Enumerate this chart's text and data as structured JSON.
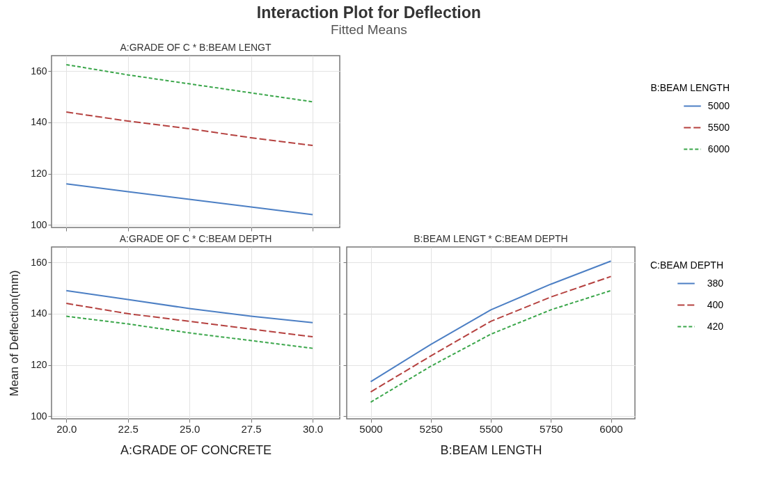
{
  "chart_data": [
    {
      "type": "line",
      "title": "Interaction Plot for Deflection",
      "subtitle": "Fitted Means",
      "annotations": [
        "A:GRADE OF C * B:BEAM LENGT"
      ],
      "x": [
        20,
        22.5,
        25,
        27.5,
        30
      ],
      "xlim": [
        19.4,
        31.1
      ],
      "xticks": [
        20,
        22.5,
        25,
        27.5,
        30
      ],
      "ylim": [
        99,
        166
      ],
      "yticks": [
        100,
        120,
        140,
        160
      ],
      "tick_labels": "y",
      "grid": true,
      "legend": "right",
      "legend_title": "B:BEAM LENGTH",
      "series": [
        {
          "name": "5000",
          "color": "#4c7fc4",
          "line_style": "solid",
          "values": [
            116,
            113,
            110,
            107,
            104
          ]
        },
        {
          "name": "5500",
          "color": "#b5413f",
          "line_style": "dashed",
          "values": [
            144,
            140.5,
            137.5,
            134,
            131
          ]
        },
        {
          "name": "6000",
          "color": "#3aa64a",
          "line_style": "dotted",
          "values": [
            162.5,
            158.5,
            155,
            151.5,
            148
          ]
        }
      ]
    },
    {
      "type": "line",
      "title": "A:GRADE OF C * C:BEAM DEPTH",
      "xlabel": "A:GRADE OF CONCRETE",
      "ylabel": "Mean of Deflection(mm)",
      "x": [
        20,
        22.5,
        25,
        27.5,
        30
      ],
      "xlim": [
        19.4,
        31.1
      ],
      "xticks": [
        {
          "value": 20,
          "label": "20.0"
        },
        22.5,
        {
          "value": 25,
          "label": "25.0"
        },
        27.5,
        {
          "value": 30,
          "label": "30.0"
        }
      ],
      "ylim": [
        99,
        166
      ],
      "yticks": [
        100,
        120,
        140,
        160
      ],
      "grid": true,
      "legend": "right",
      "series": [
        {
          "name": "380",
          "color": "#4c7fc4",
          "line_style": "solid",
          "values": [
            149,
            145.5,
            142,
            139,
            136.5
          ]
        },
        {
          "name": "400",
          "color": "#b5413f",
          "line_style": "dashed",
          "values": [
            144,
            140,
            137,
            134,
            131
          ]
        },
        {
          "name": "420",
          "color": "#3aa64a",
          "line_style": "dotted",
          "values": [
            139,
            136,
            132.5,
            129.5,
            126.5
          ]
        }
      ]
    },
    {
      "type": "line",
      "title": "B:BEAM LENGT * C:BEAM DEPTH",
      "xlabel": "B:BEAM LENGTH",
      "x": [
        5000,
        5250,
        5500,
        5750,
        6000
      ],
      "xlim": [
        4900,
        6100
      ],
      "xticks": [
        5000,
        5250,
        5500,
        5750,
        6000
      ],
      "ylim": [
        99,
        166
      ],
      "yticks": [
        100,
        120,
        140,
        160
      ],
      "tick_labels": "x",
      "grid": true,
      "legend": "right",
      "legend_title": "C:BEAM DEPTH",
      "series": [
        {
          "name": "380",
          "color": "#4c7fc4",
          "line_style": "solid",
          "values": [
            113.5,
            128,
            141.5,
            151.5,
            160.5
          ]
        },
        {
          "name": "400",
          "color": "#b5413f",
          "line_style": "dashed",
          "values": [
            109.5,
            123.5,
            137,
            146.5,
            154.5
          ]
        },
        {
          "name": "420",
          "color": "#3aa64a",
          "line_style": "dotted",
          "values": [
            105.5,
            119.5,
            132,
            141.5,
            149
          ]
        }
      ]
    }
  ]
}
